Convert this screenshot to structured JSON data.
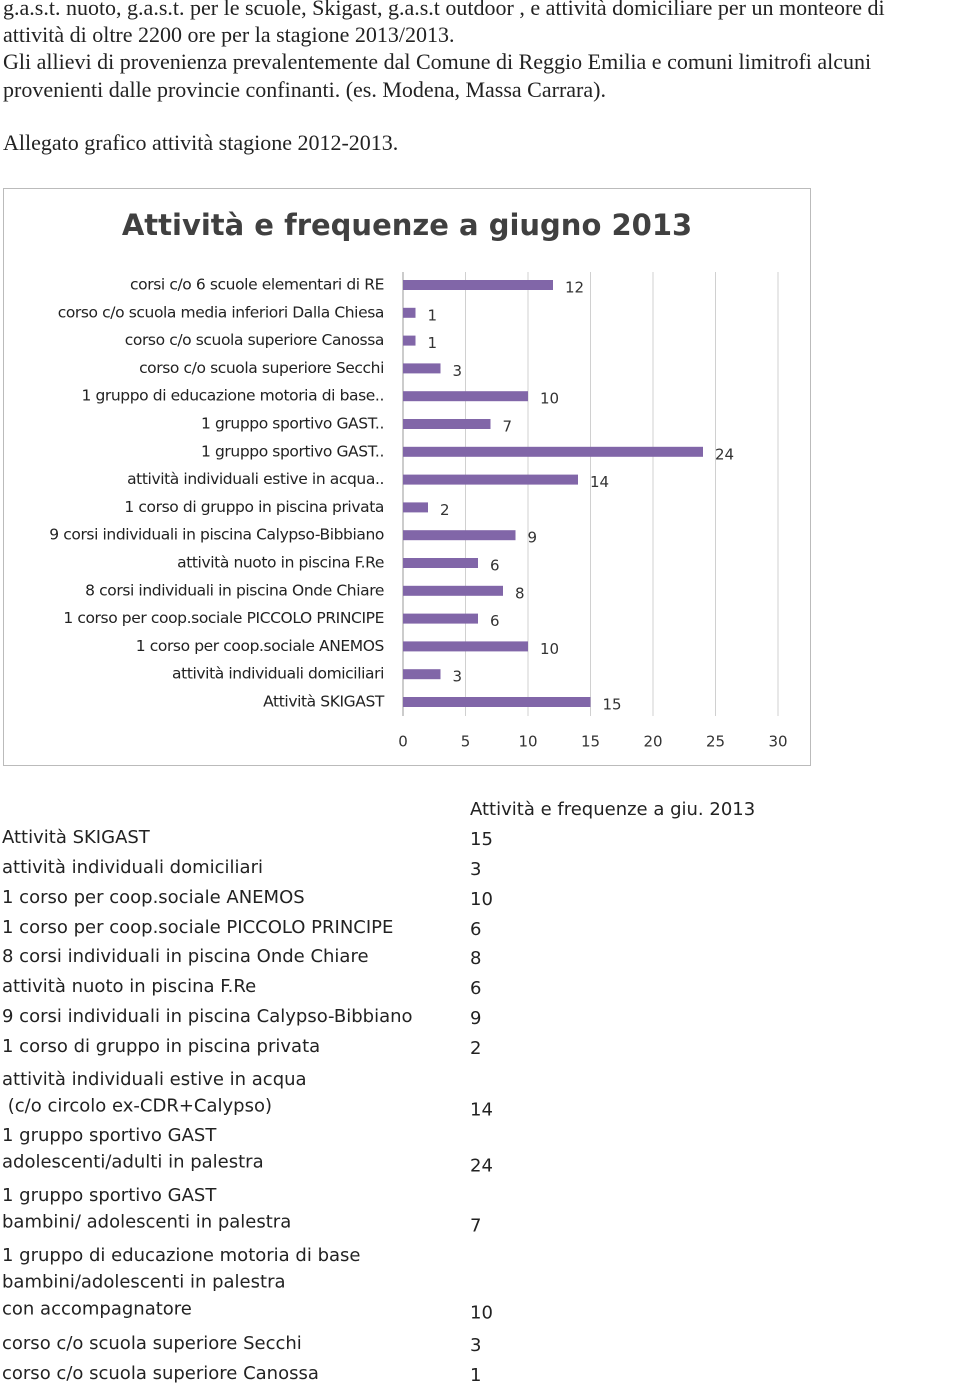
{
  "text": {
    "lines": [
      "g.a.s.t. nuoto, g.a.s.t. per le scuole, Skigast, g.a.s.t outdoor , e attività domiciliare per un monteore di",
      "attività di oltre 2200 ore per la stagione 2013/2013.",
      "Gli allievi di provenienza prevalentemente dal Comune di Reggio Emilia e comuni limitrofi alcuni",
      "provenienti dalle provincie confinanti. (es. Modena, Massa Carrara)."
    ],
    "caption": "Allegato grafico attività stagione 2012-2013."
  },
  "chart_data": {
    "type": "hbar",
    "title": "Attività e frequenze a giugno 2013",
    "categories": [
      "corsi c/o 6 scuole elementari di RE",
      "corso c/o scuola media inferiori Dalla Chiesa",
      "corso c/o scuola superiore Canossa",
      "corso c/o scuola superiore Secchi",
      "1 gruppo di educazione motoria di base..",
      "1 gruppo sportivo GAST..",
      "1 gruppo sportivo GAST..",
      "attività individuali estive in acqua..",
      "1 corso di gruppo in piscina privata",
      "9 corsi individuali in piscina Calypso-Bibbiano",
      "attività nuoto in piscina F.Re",
      "8 corsi individuali in piscina Onde Chiare",
      "1 corso per coop.sociale PICCOLO PRINCIPE",
      "1 corso per coop.sociale ANEMOS",
      "attività individuali domiciliari",
      "Attività SKIGAST"
    ],
    "values": [
      12,
      1,
      1,
      3,
      10,
      7,
      24,
      14,
      2,
      9,
      6,
      8,
      6,
      10,
      3,
      15
    ],
    "color": "#8166a8",
    "xlim": [
      0,
      30
    ],
    "xticks": [
      0,
      5,
      10,
      15,
      20,
      25,
      30
    ],
    "grid": true
  },
  "table": {
    "header": "Attività e frequenze a giu. 2013",
    "rows": [
      {
        "lines": [
          "Attività SKIGAST"
        ],
        "value": 15
      },
      {
        "lines": [
          "attività individuali domiciliari"
        ],
        "value": 3
      },
      {
        "lines": [
          "1 corso per coop.sociale ANEMOS"
        ],
        "value": 10
      },
      {
        "lines": [
          "1 corso per coop.sociale PICCOLO PRINCIPE"
        ],
        "value": 6
      },
      {
        "lines": [
          "8 corsi individuali in piscina Onde Chiare"
        ],
        "value": 8
      },
      {
        "lines": [
          "attività nuoto in piscina F.Re"
        ],
        "value": 6
      },
      {
        "lines": [
          "9 corsi individuali in piscina Calypso-Bibbiano"
        ],
        "value": 9
      },
      {
        "lines": [
          "1 corso di gruppo in piscina privata"
        ],
        "value": 2
      },
      {
        "lines": [
          "attività individuali estive in acqua",
          " (c/o circolo ex-CDR+Calypso)"
        ],
        "value": 14
      },
      {
        "lines": [
          "1 gruppo sportivo GAST",
          "adolescenti/adulti in palestra"
        ],
        "value": 24
      },
      {
        "lines": [
          "1 gruppo sportivo GAST",
          "bambini/ adolescenti in palestra"
        ],
        "value": 7
      },
      {
        "lines": [
          "1 gruppo di educazione motoria di base",
          "bambini/adolescenti in palestra",
          "con accompagnatore"
        ],
        "value": 10
      },
      {
        "lines": [
          "corso c/o scuola superiore Secchi"
        ],
        "value": 3
      },
      {
        "lines": [
          "corso c/o scuola superiore Canossa"
        ],
        "value": 1
      }
    ]
  }
}
